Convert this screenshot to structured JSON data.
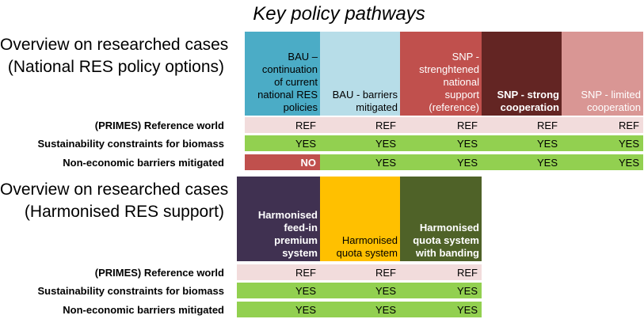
{
  "title": "Key policy pathways",
  "section1": {
    "title_lines": [
      "Overview on researched cases",
      "(National RES policy options)"
    ],
    "columns": [
      {
        "lines": [
          "BAU –",
          "continuation",
          "of current",
          "national RES",
          "policies"
        ],
        "color": "#4bacc6"
      },
      {
        "lines": [
          "BAU - barriers",
          "mitigated"
        ],
        "color": "#b7dde8"
      },
      {
        "lines": [
          "SNP -",
          "strenghtened",
          "national",
          "support",
          "(reference)"
        ],
        "color": "#c0504d"
      },
      {
        "lines": [
          "SNP - strong",
          "cooperation"
        ],
        "color": "#632523"
      },
      {
        "lines": [
          "SNP - limited",
          "cooperation"
        ],
        "color": "#d99694"
      }
    ],
    "rows": [
      {
        "label": "(PRIMES) Reference world",
        "values": [
          "REF",
          "REF",
          "REF",
          "REF",
          "REF"
        ]
      },
      {
        "label": "Sustainability constraints for biomass",
        "values": [
          "YES",
          "YES",
          "YES",
          "YES",
          "YES"
        ]
      },
      {
        "label": "Non-economic barriers mitigated",
        "values": [
          "NO",
          "YES",
          "YES",
          "YES",
          "YES"
        ]
      }
    ]
  },
  "section2": {
    "title_lines": [
      "Overview on researched cases",
      "(Harmonised RES support)"
    ],
    "columns": [
      {
        "lines": [
          "Harmonised",
          "feed-in",
          "premium",
          "system"
        ],
        "color": "#403151"
      },
      {
        "lines": [
          "Harmonised",
          "quota system"
        ],
        "color": "#ffc000"
      },
      {
        "lines": [
          "Harmonised",
          "quota system",
          "with banding"
        ],
        "color": "#4f6228"
      }
    ],
    "rows": [
      {
        "label": "(PRIMES) Reference world",
        "values": [
          "REF",
          "REF",
          "REF"
        ]
      },
      {
        "label": "Sustainability constraints for biomass",
        "values": [
          "YES",
          "YES",
          "YES"
        ]
      },
      {
        "label": "Non-economic barriers mitigated",
        "values": [
          "YES",
          "YES",
          "YES"
        ]
      }
    ]
  }
}
